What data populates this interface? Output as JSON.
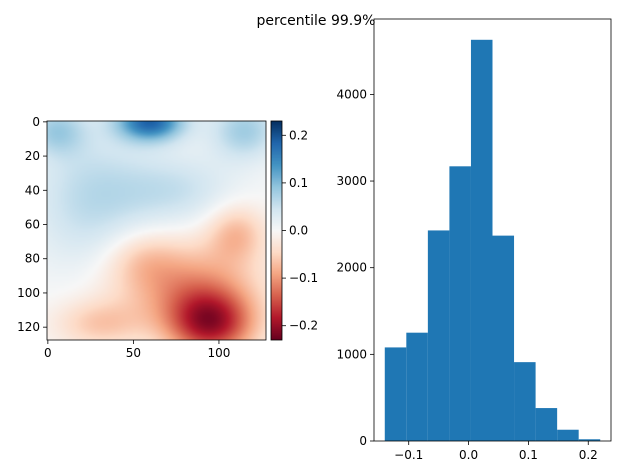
{
  "figure": {
    "title": "percentile 99.9%"
  },
  "chart_data": [
    {
      "type": "heatmap",
      "title": "",
      "xlabel": "",
      "ylabel": "",
      "xlim": [
        0,
        128
      ],
      "ylim": [
        128,
        0
      ],
      "xticks": [
        0,
        50,
        100
      ],
      "yticks": [
        0,
        20,
        40,
        60,
        80,
        100,
        120
      ],
      "colormap": "RdBu",
      "colorbar": {
        "vmin": -0.23,
        "vmax": 0.23,
        "ticks": [
          0.2,
          0.1,
          0.0,
          -0.1,
          -0.2
        ],
        "tick_labels": [
          "0.2",
          "0.1",
          "0.0",
          "−0.1",
          "−0.2"
        ]
      },
      "features": [
        {
          "x": 60,
          "y": 0,
          "sx": 14,
          "sy": 8,
          "value": 0.18
        },
        {
          "x": 5,
          "y": 5,
          "sx": 12,
          "sy": 10,
          "value": 0.07
        },
        {
          "x": 115,
          "y": 5,
          "sx": 14,
          "sy": 12,
          "value": 0.08
        },
        {
          "x": 25,
          "y": 45,
          "sx": 25,
          "sy": 30,
          "value": 0.06
        },
        {
          "x": 75,
          "y": 40,
          "sx": 25,
          "sy": 15,
          "value": 0.05
        },
        {
          "x": 95,
          "y": 118,
          "sx": 18,
          "sy": 14,
          "value": -0.18
        },
        {
          "x": 80,
          "y": 95,
          "sx": 30,
          "sy": 18,
          "value": -0.09
        },
        {
          "x": 110,
          "y": 65,
          "sx": 12,
          "sy": 12,
          "value": -0.07
        },
        {
          "x": 30,
          "y": 118,
          "sx": 18,
          "sy": 10,
          "value": -0.06
        },
        {
          "x": 55,
          "y": 80,
          "sx": 15,
          "sy": 12,
          "value": -0.04
        }
      ]
    },
    {
      "type": "bar",
      "title": "",
      "xlabel": "",
      "ylabel": "",
      "bin_edges": [
        -0.14,
        -0.104,
        -0.068,
        -0.032,
        0.004,
        0.04,
        0.076,
        0.112,
        0.148,
        0.184,
        0.22
      ],
      "values": [
        1080,
        1250,
        2430,
        3170,
        4630,
        2370,
        910,
        380,
        130,
        20
      ],
      "color": "#1f77b4",
      "xlim": [
        -0.158,
        0.238
      ],
      "ylim": [
        0,
        4870
      ],
      "xticks": [
        -0.1,
        0.0,
        0.1,
        0.2
      ],
      "xtick_labels": [
        "−0.1",
        "0.0",
        "0.1",
        "0.2"
      ],
      "yticks": [
        0,
        1000,
        2000,
        3000,
        4000
      ],
      "ytick_labels": [
        "0",
        "1000",
        "2000",
        "3000",
        "4000"
      ]
    }
  ]
}
